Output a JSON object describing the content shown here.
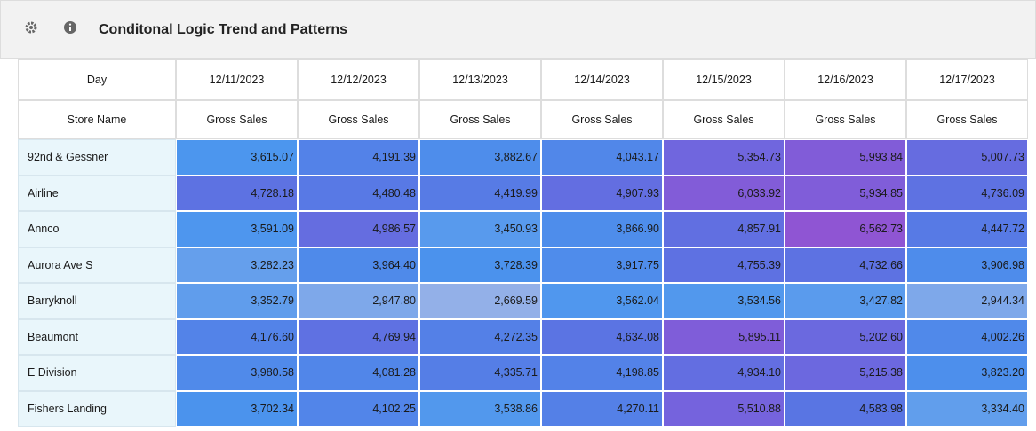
{
  "header": {
    "title": "Conditonal Logic Trend and Patterns"
  },
  "table": {
    "day_label": "Day",
    "dates": [
      "12/11/2023",
      "12/12/2023",
      "12/13/2023",
      "12/14/2023",
      "12/15/2023",
      "12/16/2023",
      "12/17/2023"
    ],
    "store_label": "Store Name",
    "measure": [
      "Gross Sales",
      "Gross Sales",
      "Gross Sales",
      "Gross Sales",
      "Gross Sales",
      "Gross Sales",
      "Gross Sales"
    ],
    "color_scale": [
      "#93b0e8",
      "#4a95ee",
      "#5a74e3",
      "#7761dc",
      "#8f55d3"
    ],
    "rows": [
      {
        "store": "92nd & Gessner",
        "values": [
          "3,615.07",
          "4,191.39",
          "3,882.67",
          "4,043.17",
          "5,354.73",
          "5,993.84",
          "5,007.73"
        ]
      },
      {
        "store": "Airline",
        "values": [
          "4,728.18",
          "4,480.48",
          "4,419.99",
          "4,907.93",
          "6,033.92",
          "5,934.85",
          "4,736.09"
        ]
      },
      {
        "store": "Annco",
        "values": [
          "3,591.09",
          "4,986.57",
          "3,450.93",
          "3,866.90",
          "4,857.91",
          "6,562.73",
          "4,447.72"
        ]
      },
      {
        "store": "Aurora Ave S",
        "values": [
          "3,282.23",
          "3,964.40",
          "3,728.39",
          "3,917.75",
          "4,755.39",
          "4,732.66",
          "3,906.98"
        ]
      },
      {
        "store": "Barryknoll",
        "values": [
          "3,352.79",
          "2,947.80",
          "2,669.59",
          "3,562.04",
          "3,534.56",
          "3,427.82",
          "2,944.34"
        ]
      },
      {
        "store": "Beaumont",
        "values": [
          "4,176.60",
          "4,769.94",
          "4,272.35",
          "4,634.08",
          "5,895.11",
          "5,202.60",
          "4,002.26"
        ]
      },
      {
        "store": "E Division",
        "values": [
          "3,980.58",
          "4,081.28",
          "4,335.71",
          "4,198.85",
          "4,934.10",
          "5,215.38",
          "3,823.20"
        ]
      },
      {
        "store": "Fishers Landing",
        "values": [
          "3,702.34",
          "4,102.25",
          "3,538.86",
          "4,270.11",
          "5,510.88",
          "4,583.98",
          "3,334.40"
        ]
      }
    ]
  }
}
